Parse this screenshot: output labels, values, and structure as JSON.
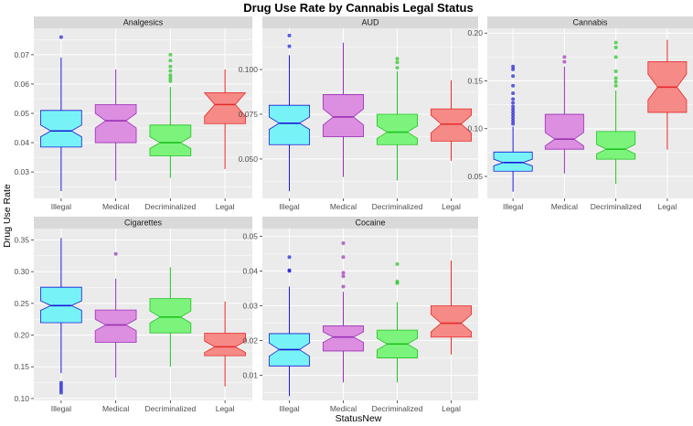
{
  "chart_data": {
    "type": "boxplot",
    "title": "Drug Use Rate by Cannabis Legal Status",
    "xlabel": "StatusNew",
    "ylabel": "Drug Use Rate",
    "categories": [
      "Illegal",
      "Medical",
      "Decriminalized",
      "Legal"
    ],
    "colors": {
      "fill": [
        "#77f3f7",
        "#dc8ee0",
        "#7cf47c",
        "#f58a86"
      ],
      "line": [
        "#1a1ad6",
        "#9b30b8",
        "#1fc21f",
        "#e62a2a"
      ],
      "median": [
        "#1a1ad6",
        "#9b30b8",
        "#1fc21f",
        "#e62a2a"
      ],
      "panel_bg": "#ebebeb",
      "strip_bg": "#d9d9d9",
      "grid": "#ffffff"
    },
    "panels": [
      {
        "name": "Analgesics",
        "ylim": [
          0.021,
          0.079
        ],
        "yticks": [
          0.03,
          0.04,
          0.05,
          0.06,
          0.07
        ],
        "ytick_labels": [
          "0.03",
          "0.04",
          "0.05",
          "0.06",
          "0.07"
        ],
        "boxes": [
          {
            "whisker_low": 0.0235,
            "q1": 0.0385,
            "median": 0.044,
            "q3": 0.051,
            "whisker_high": 0.069,
            "notch": [
              0.042,
              0.046
            ],
            "outliers": [
              0.076
            ]
          },
          {
            "whisker_low": 0.027,
            "q1": 0.04,
            "median": 0.0475,
            "q3": 0.053,
            "whisker_high": 0.065,
            "notch": [
              0.045,
              0.05
            ],
            "outliers": []
          },
          {
            "whisker_low": 0.028,
            "q1": 0.0355,
            "median": 0.04,
            "q3": 0.046,
            "whisker_high": 0.059,
            "notch": [
              0.038,
              0.042
            ],
            "outliers": [
              0.061,
              0.062,
              0.063,
              0.0645,
              0.066,
              0.068,
              0.07
            ]
          },
          {
            "whisker_low": 0.031,
            "q1": 0.0465,
            "median": 0.053,
            "q3": 0.057,
            "whisker_high": 0.065,
            "notch": [
              0.049,
              0.057
            ],
            "outliers": []
          }
        ]
      },
      {
        "name": "AUD",
        "ylim": [
          0.028,
          0.123
        ],
        "yticks": [
          0.05,
          0.075,
          0.1
        ],
        "ytick_labels": [
          "0.050",
          "0.075",
          "0.100"
        ],
        "boxes": [
          {
            "whisker_low": 0.032,
            "q1": 0.058,
            "median": 0.07,
            "q3": 0.08,
            "whisker_high": 0.108,
            "notch": [
              0.0665,
              0.0735
            ],
            "outliers": [
              0.113,
              0.119
            ]
          },
          {
            "whisker_low": 0.04,
            "q1": 0.0625,
            "median": 0.0735,
            "q3": 0.086,
            "whisker_high": 0.115,
            "notch": [
              0.069,
              0.078
            ],
            "outliers": []
          },
          {
            "whisker_low": 0.038,
            "q1": 0.058,
            "median": 0.065,
            "q3": 0.075,
            "whisker_high": 0.099,
            "notch": [
              0.0615,
              0.0685
            ],
            "outliers": [
              0.101,
              0.104,
              0.106
            ]
          },
          {
            "whisker_low": 0.049,
            "q1": 0.06,
            "median": 0.0695,
            "q3": 0.078,
            "whisker_high": 0.094,
            "notch": [
              0.0645,
              0.0745
            ],
            "outliers": []
          }
        ]
      },
      {
        "name": "Cannabis",
        "ylim": [
          0.027,
          0.205
        ],
        "yticks": [
          0.05,
          0.1,
          0.15,
          0.2
        ],
        "ytick_labels": [
          "0.05",
          "0.10",
          "0.15",
          "0.20"
        ],
        "boxes": [
          {
            "whisker_low": 0.034,
            "q1": 0.0555,
            "median": 0.0645,
            "q3": 0.0755,
            "whisker_high": 0.102,
            "notch": [
              0.061,
              0.068
            ],
            "outliers": [
              0.105,
              0.108,
              0.111,
              0.114,
              0.117,
              0.12,
              0.123,
              0.127,
              0.131,
              0.137,
              0.145,
              0.155,
              0.162,
              0.165
            ]
          },
          {
            "whisker_low": 0.053,
            "q1": 0.0785,
            "median": 0.089,
            "q3": 0.115,
            "whisker_high": 0.165,
            "notch": [
              0.082,
              0.096
            ],
            "outliers": [
              0.17,
              0.175
            ]
          },
          {
            "whisker_low": 0.042,
            "q1": 0.068,
            "median": 0.0785,
            "q3": 0.097,
            "whisker_high": 0.14,
            "notch": [
              0.0735,
              0.0835
            ],
            "outliers": [
              0.145,
              0.149,
              0.153,
              0.16,
              0.175,
              0.185,
              0.19
            ]
          },
          {
            "whisker_low": 0.078,
            "q1": 0.117,
            "median": 0.1435,
            "q3": 0.17,
            "whisker_high": 0.193,
            "notch": [
              0.13,
              0.157
            ],
            "outliers": []
          }
        ]
      },
      {
        "name": "Cigarettes",
        "ylim": [
          0.097,
          0.368
        ],
        "yticks": [
          0.1,
          0.15,
          0.2,
          0.25,
          0.3,
          0.35
        ],
        "ytick_labels": [
          "0.10",
          "0.15",
          "0.20",
          "0.25",
          "0.30",
          "0.35"
        ],
        "boxes": [
          {
            "whisker_low": 0.14,
            "q1": 0.2195,
            "median": 0.2465,
            "q3": 0.2755,
            "whisker_high": 0.353,
            "notch": [
              0.239,
              0.254
            ],
            "outliers": [
              0.109,
              0.113,
              0.117,
              0.121,
              0.125
            ]
          },
          {
            "whisker_low": 0.133,
            "q1": 0.1885,
            "median": 0.216,
            "q3": 0.2395,
            "whisker_high": 0.289,
            "notch": [
              0.207,
              0.225
            ],
            "outliers": [
              0.328
            ]
          },
          {
            "whisker_low": 0.15,
            "q1": 0.2035,
            "median": 0.2285,
            "q3": 0.2575,
            "whisker_high": 0.307,
            "notch": [
              0.219,
              0.238
            ],
            "outliers": []
          },
          {
            "whisker_low": 0.119,
            "q1": 0.1675,
            "median": 0.1815,
            "q3": 0.203,
            "whisker_high": 0.253,
            "notch": [
              0.1725,
              0.1905
            ],
            "outliers": []
          }
        ]
      },
      {
        "name": "Cocaine",
        "ylim": [
          0.0028,
          0.0522
        ],
        "yticks": [
          0.01,
          0.02,
          0.03,
          0.04,
          0.05
        ],
        "ytick_labels": [
          "0.01",
          "0.02",
          "0.03",
          "0.04",
          "0.05"
        ],
        "boxes": [
          {
            "whisker_low": 0.004,
            "q1": 0.0127,
            "median": 0.0174,
            "q3": 0.022,
            "whisker_high": 0.0355,
            "notch": [
              0.0155,
              0.0193
            ],
            "outliers": [
              0.04,
              0.0402,
              0.044
            ]
          },
          {
            "whisker_low": 0.008,
            "q1": 0.017,
            "median": 0.021,
            "q3": 0.0242,
            "whisker_high": 0.034,
            "notch": [
              0.0195,
              0.0225
            ],
            "outliers": [
              0.0355,
              0.0385,
              0.0395,
              0.044,
              0.048
            ]
          },
          {
            "whisker_low": 0.008,
            "q1": 0.015,
            "median": 0.019,
            "q3": 0.023,
            "whisker_high": 0.031,
            "notch": [
              0.0173,
              0.0207
            ],
            "outliers": [
              0.0365,
              0.037,
              0.042
            ]
          },
          {
            "whisker_low": 0.016,
            "q1": 0.021,
            "median": 0.025,
            "q3": 0.03,
            "whisker_high": 0.043,
            "notch": [
              0.0225,
              0.0275
            ],
            "outliers": []
          }
        ]
      }
    ]
  }
}
